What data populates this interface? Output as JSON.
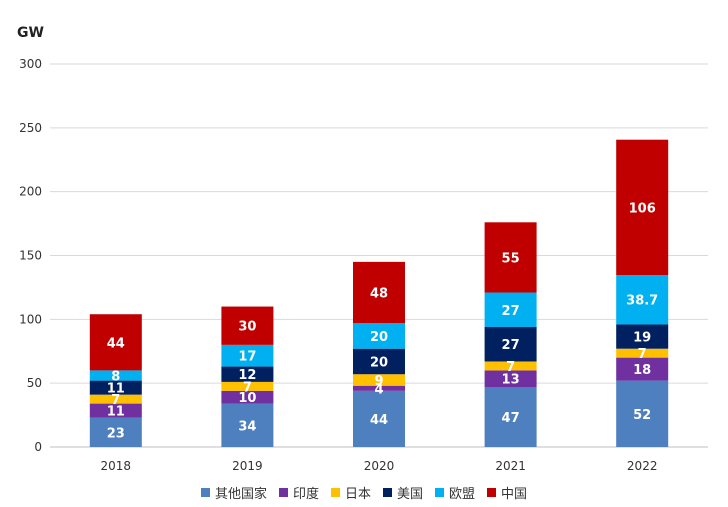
{
  "chart_data": {
    "type": "bar",
    "stacked": true,
    "ylabel": "GW",
    "ylim": [
      0,
      300
    ],
    "yticks": [
      0,
      50,
      100,
      150,
      200,
      250,
      300
    ],
    "grid": true,
    "legend_position": "bottom",
    "categories": [
      "2018",
      "2019",
      "2020",
      "2021",
      "2022"
    ],
    "series": [
      {
        "name": "其他国家",
        "color": "#4e7fbf",
        "values": [
          23,
          34,
          44,
          47,
          52
        ]
      },
      {
        "name": "印度",
        "color": "#7030a0",
        "values": [
          11,
          10,
          4,
          13,
          18
        ]
      },
      {
        "name": "日本",
        "color": "#ffc000",
        "values": [
          7,
          7,
          9,
          7,
          7
        ]
      },
      {
        "name": "美国",
        "color": "#002060",
        "values": [
          11,
          12,
          20,
          27,
          19
        ]
      },
      {
        "name": "欧盟",
        "color": "#00b0f0",
        "values": [
          8,
          17,
          20,
          27,
          38.7
        ]
      },
      {
        "name": "中国",
        "color": "#c00000",
        "values": [
          44,
          30,
          48,
          55,
          106
        ]
      }
    ],
    "data_labels": [
      [
        "23",
        "34",
        "44",
        "47",
        "52"
      ],
      [
        "11",
        "10",
        "4",
        "13",
        "18"
      ],
      [
        "7",
        "7",
        "9",
        "7",
        "7"
      ],
      [
        "11",
        "12",
        "20",
        "27",
        "19"
      ],
      [
        "8",
        "17",
        "20",
        "27",
        "38.7"
      ],
      [
        "44",
        "30",
        "48",
        "55",
        "106"
      ]
    ]
  }
}
